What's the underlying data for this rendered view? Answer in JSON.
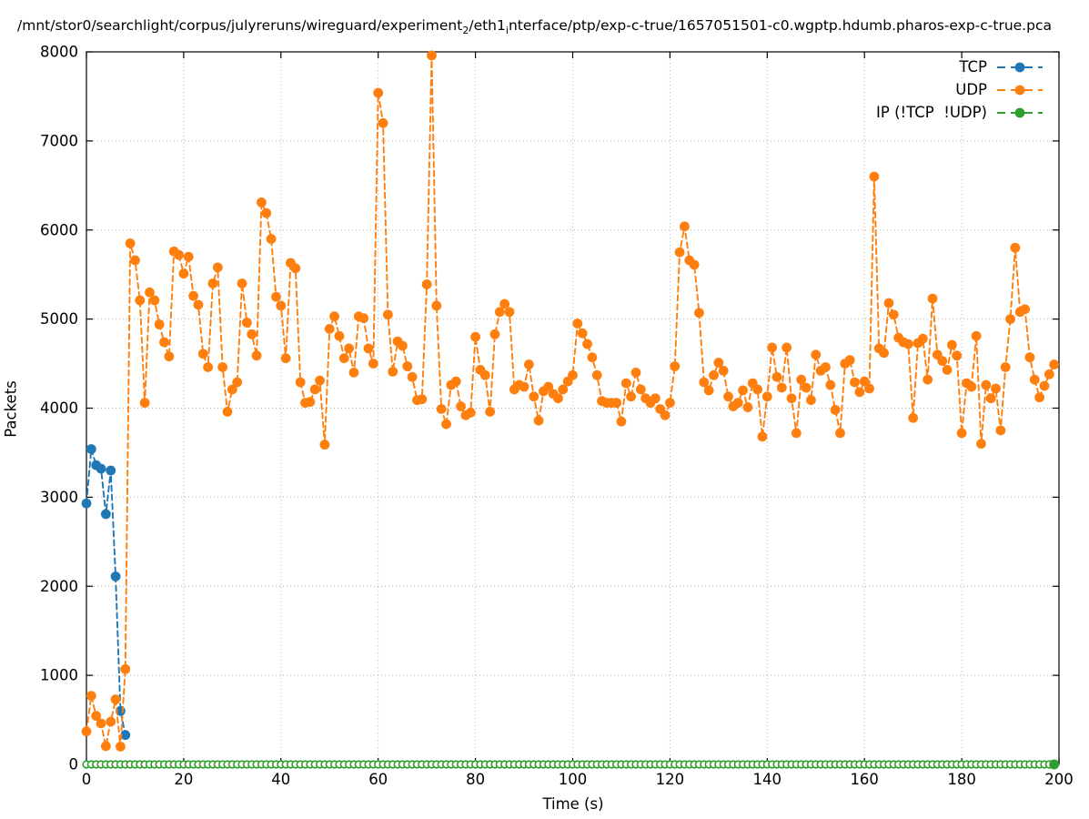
{
  "title": {
    "part1": "/mnt/stor0/searchlight/corpus/julyreruns/wireguard/experiment",
    "sub1": "2",
    "part2": "/eth1",
    "sub2": "i",
    "part3": "nterface/ptp/exp-c-true/1657051501-c0.wgptp.hdumb.pharos-exp-c-true.pca"
  },
  "axes": {
    "xlabel": "Time (s)",
    "ylabel": "Packets",
    "xlim": [
      0,
      200
    ],
    "ylim": [
      0,
      8000
    ],
    "x_ticks": [
      0,
      20,
      40,
      60,
      80,
      100,
      120,
      140,
      160,
      180,
      200
    ],
    "y_ticks": [
      0,
      1000,
      2000,
      3000,
      4000,
      5000,
      6000,
      7000,
      8000
    ],
    "grid": "dotted"
  },
  "legend": [
    {
      "label": "TCP",
      "color": "#1f77b4"
    },
    {
      "label": "UDP",
      "color": "#ff7f0e"
    },
    {
      "label": "IP (!TCP  !UDP)",
      "color": "#2ca02c"
    }
  ],
  "chart_data": {
    "type": "line",
    "title": "/mnt/stor0/searchlight/corpus/julyreruns/wireguard/experiment_2/eth1_interface/ptp/exp-c-true/1657051501-c0.wgptp.hdumb.pharos-exp-c-true.pca",
    "xlabel": "Time (s)",
    "ylabel": "Packets",
    "xlim": [
      0,
      200
    ],
    "ylim": [
      0,
      8000
    ],
    "legend_position": "upper right",
    "series": [
      {
        "name": "TCP",
        "color": "#1f77b4",
        "style": "dashed-with-dots",
        "x": [
          0,
          1,
          2,
          3,
          4,
          5,
          6,
          7,
          8
        ],
        "y": [
          2930,
          3540,
          3360,
          3320,
          2810,
          3300,
          2110,
          600,
          330
        ]
      },
      {
        "name": "UDP",
        "color": "#ff7f0e",
        "style": "dashed-with-dots",
        "x_start": 0,
        "x_step": 1,
        "y": [
          370,
          770,
          545,
          460,
          205,
          480,
          730,
          200,
          1070,
          5850,
          5660,
          5210,
          4060,
          5300,
          5210,
          4940,
          4740,
          4580,
          5760,
          5720,
          5510,
          5700,
          5260,
          5160,
          4610,
          4460,
          5400,
          5580,
          4460,
          3960,
          4210,
          4290,
          5400,
          4960,
          4830,
          4590,
          6310,
          6190,
          5900,
          5250,
          5150,
          4560,
          5630,
          5570,
          4290,
          4060,
          4070,
          4210,
          4310,
          3590,
          4890,
          5030,
          4810,
          4560,
          4670,
          4400,
          5030,
          5010,
          4670,
          4500,
          7540,
          7200,
          5050,
          4410,
          4750,
          4700,
          4470,
          4350,
          4090,
          4100,
          5390,
          7960,
          5150,
          3990,
          3820,
          4260,
          4300,
          4020,
          3920,
          3950,
          4800,
          4430,
          4370,
          3960,
          4830,
          5080,
          5170,
          5080,
          4210,
          4260,
          4240,
          4490,
          4130,
          3860,
          4190,
          4240,
          4160,
          4110,
          4210,
          4300,
          4370,
          4950,
          4840,
          4720,
          4570,
          4370,
          4080,
          4060,
          4060,
          4060,
          3850,
          4280,
          4130,
          4400,
          4210,
          4110,
          4060,
          4110,
          3990,
          3920,
          4060,
          4470,
          5750,
          6040,
          5660,
          5610,
          5070,
          4290,
          4200,
          4370,
          4510,
          4420,
          4130,
          4020,
          4060,
          4200,
          4010,
          4280,
          4210,
          3680,
          4130,
          4680,
          4350,
          4230,
          4680,
          4110,
          3720,
          4320,
          4230,
          4090,
          4600,
          4420,
          4460,
          4260,
          3980,
          3720,
          4500,
          4540,
          4290,
          4180,
          4300,
          4220,
          6600,
          4670,
          4620,
          5180,
          5050,
          4790,
          4740,
          4720,
          3890,
          4730,
          4780,
          4320,
          5230,
          4600,
          4530,
          4430,
          4710,
          4590,
          3720,
          4280,
          4240,
          4810,
          3600,
          4260,
          4110,
          4220,
          3750,
          4460,
          5000,
          5800,
          5080,
          5110,
          4570,
          4320,
          4120,
          4250,
          4380,
          4490
        ]
      },
      {
        "name": "IP (!TCP  !UDP)",
        "color": "#2ca02c",
        "style": "open-circles-at-zero",
        "x_start": 0,
        "x_end": 199,
        "y_constant": 0
      }
    ]
  }
}
